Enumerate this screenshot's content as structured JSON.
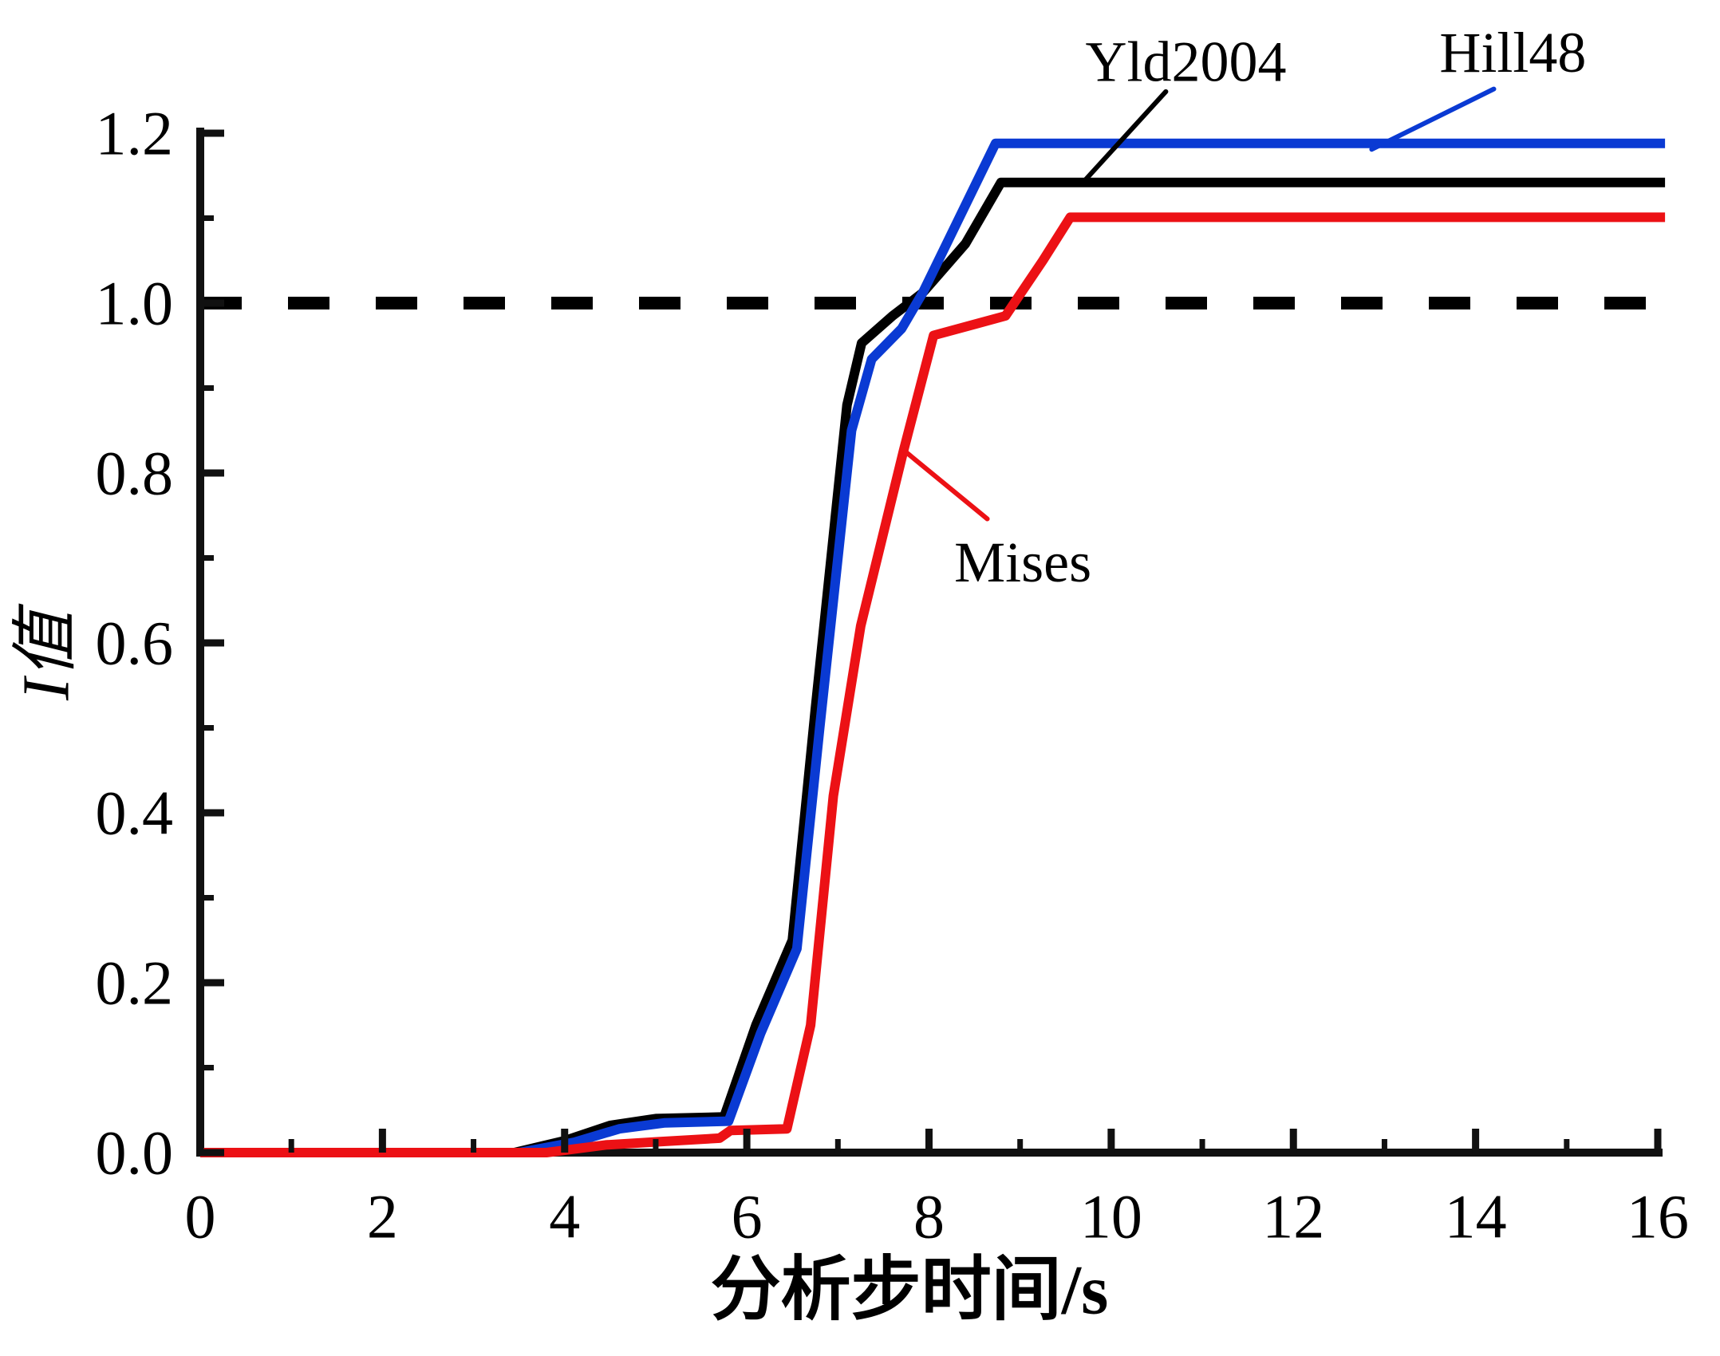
{
  "chart_data": {
    "type": "line",
    "title": "",
    "xlabel": "分析步时间/s",
    "ylabel": "I值",
    "xlim": [
      0,
      16
    ],
    "ylim": [
      0,
      1.2
    ],
    "grid": false,
    "legend_position": "none",
    "axis_color": "#111111",
    "background_color": "#ffffff",
    "x_tick_values": [
      0,
      2,
      4,
      6,
      8,
      10,
      12,
      14,
      16
    ],
    "x_tick_labels": [
      "0",
      "2",
      "4",
      "6",
      "8",
      "10",
      "12",
      "14",
      "16"
    ],
    "x_minor_ticks": [
      1,
      3,
      5,
      7,
      9,
      11,
      13,
      15
    ],
    "y_tick_values": [
      0.0,
      0.2,
      0.4,
      0.6,
      0.8,
      1.0,
      1.2
    ],
    "y_tick_labels": [
      "0.0",
      "0.2",
      "0.4",
      "0.6",
      "0.8",
      "1.0",
      "1.2"
    ],
    "y_minor_ticks": [
      0.1,
      0.3,
      0.5,
      0.7,
      0.9,
      1.1
    ],
    "reference_line": {
      "y": 1.0,
      "style": "dashed",
      "color": "#000000"
    },
    "series": [
      {
        "name": "Yld2004",
        "color": "#000000",
        "points": [
          [
            0,
            0
          ],
          [
            3.45,
            0
          ],
          [
            4.0,
            0.014
          ],
          [
            4.5,
            0.032
          ],
          [
            5.0,
            0.04
          ],
          [
            5.75,
            0.042
          ],
          [
            6.1,
            0.15
          ],
          [
            6.5,
            0.25
          ],
          [
            6.75,
            0.52
          ],
          [
            7.1,
            0.88
          ],
          [
            7.26,
            0.953
          ],
          [
            7.6,
            0.985
          ],
          [
            7.93,
            1.012
          ],
          [
            8.4,
            1.07
          ],
          [
            8.79,
            1.142
          ],
          [
            16.08,
            1.142
          ]
        ]
      },
      {
        "name": "Hill48",
        "color": "#0a3ad3",
        "points": [
          [
            0,
            0
          ],
          [
            3.5,
            0
          ],
          [
            4.1,
            0.012
          ],
          [
            4.6,
            0.028
          ],
          [
            5.1,
            0.035
          ],
          [
            5.8,
            0.037
          ],
          [
            6.15,
            0.14
          ],
          [
            6.55,
            0.24
          ],
          [
            6.8,
            0.5
          ],
          [
            7.15,
            0.85
          ],
          [
            7.37,
            0.934
          ],
          [
            7.7,
            0.97
          ],
          [
            7.93,
            1.012
          ],
          [
            8.73,
            1.188
          ],
          [
            16.08,
            1.188
          ]
        ]
      },
      {
        "name": "Mises",
        "color": "#ec1115",
        "points": [
          [
            0,
            0
          ],
          [
            3.8,
            0
          ],
          [
            4.45,
            0.009
          ],
          [
            5.05,
            0.013
          ],
          [
            5.7,
            0.017
          ],
          [
            5.82,
            0.026
          ],
          [
            6.44,
            0.028
          ],
          [
            6.7,
            0.15
          ],
          [
            6.95,
            0.42
          ],
          [
            7.25,
            0.62
          ],
          [
            7.72,
            0.826
          ],
          [
            8.05,
            0.962
          ],
          [
            8.5,
            0.975
          ],
          [
            8.84,
            0.985
          ],
          [
            9.25,
            1.05
          ],
          [
            9.55,
            1.101
          ],
          [
            16.08,
            1.101
          ]
        ]
      }
    ],
    "annotations": [
      {
        "text": "Yld2004",
        "target_series": "Yld2004",
        "text_color": "#000000",
        "leader_color": "#000000",
        "label_pos": [
          10.82,
          1.284
        ],
        "leader": [
          [
            10.6,
            1.249
          ],
          [
            9.69,
            1.142
          ]
        ]
      },
      {
        "text": "Hill48",
        "target_series": "Hill48",
        "text_color": "#000000",
        "leader_color": "#0a3ad3",
        "label_pos": [
          14.41,
          1.295
        ],
        "leader": [
          [
            14.2,
            1.252
          ],
          [
            12.86,
            1.181
          ]
        ]
      },
      {
        "text": "Mises",
        "target_series": "Mises",
        "text_color": "#000000",
        "leader_color": "#ec1115",
        "label_pos": [
          9.03,
          0.695
        ],
        "leader": [
          [
            8.64,
            0.746
          ],
          [
            7.72,
            0.827
          ]
        ]
      }
    ]
  }
}
